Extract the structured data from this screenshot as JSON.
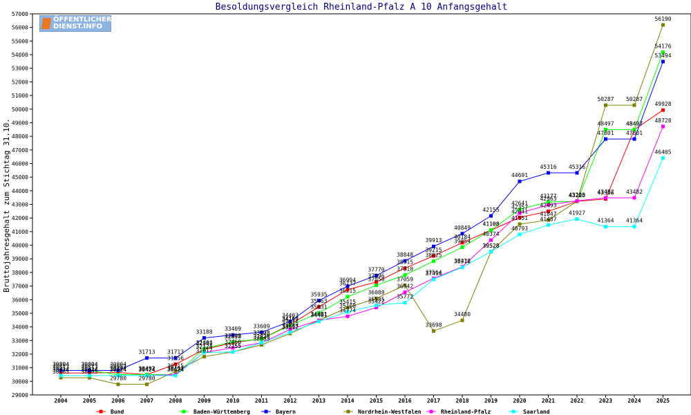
{
  "logo": {
    "line1": "ÖFFENTLICHER",
    "line2": "DIENST.INFO"
  },
  "chart_data": {
    "type": "line",
    "title": "Besoldungsvergleich Rheinland-Pfalz A 10 Anfangsgehalt",
    "xlabel": "",
    "ylabel": "Bruttojahresgehalt zum Stichtag 31.10.",
    "ylim": [
      29000,
      57000
    ],
    "ytick_step": 1000,
    "grid": false,
    "legend_position": "bottom",
    "categories": [
      "2004",
      "2005",
      "2006",
      "2007",
      "2008",
      "2009",
      "2010",
      "2011",
      "2012",
      "2013",
      "2014",
      "2015",
      "2016",
      "2017",
      "2018",
      "2019",
      "2020",
      "2021",
      "2022",
      "2023",
      "2024",
      "2025"
    ],
    "series": [
      {
        "name": "Bund",
        "color": "#ff0000",
        "values": [
          30613,
          30613,
          30652,
          30492,
          31256,
          32342,
          32838,
          33123,
          34166,
          35463,
          36737,
          37296,
          38315,
          39215,
          40184,
          41108,
          42041,
          42493,
          43225,
          43396,
          48497,
          49928
        ]
      },
      {
        "name": "Baden-Württemberg",
        "color": "#00ff00",
        "values": [
          30804,
          30804,
          30492,
          30492,
          30492,
          32404,
          32909,
          33108,
          34117,
          35031,
          36215,
          37050,
          37810,
          38825,
          39854,
          41108,
          42641,
          43177,
          43225,
          48497,
          48497,
          54176
        ]
      },
      {
        "name": "Bayern",
        "color": "#0000ff",
        "values": [
          30804,
          30804,
          30804,
          31713,
          31713,
          33188,
          33409,
          33609,
          34403,
          35935,
          36994,
          37770,
          38848,
          39913,
          40849,
          42155,
          44691,
          45316,
          45316,
          47801,
          47801,
          53494
        ]
      },
      {
        "name": "Nordrhein-Westfalen",
        "color": "#808000",
        "values": [
          30265,
          30265,
          29780,
          29780,
          30715,
          31817,
          32155,
          32683,
          33512,
          34481,
          35415,
          36088,
          37059,
          33698,
          34480,
          39528,
          41551,
          41847,
          43225,
          50287,
          50287,
          56190
        ]
      },
      {
        "name": "Rheinland-Pfalz",
        "color": "#ff00ff",
        "values": [
          30424,
          30424,
          30424,
          30424,
          30491,
          32124,
          32460,
          32828,
          33815,
          34481,
          34774,
          35422,
          36542,
          37564,
          38412,
          40374,
          42357,
          42963,
          43260,
          43482,
          43482,
          48728
        ]
      },
      {
        "name": "Saarland",
        "color": "#00ffff",
        "values": [
          30424,
          30424,
          30424,
          30424,
          30424,
          32124,
          32155,
          32828,
          33607,
          34401,
          35108,
          35585,
          35772,
          37494,
          38376,
          39528,
          40793,
          41487,
          41927,
          41364,
          41364,
          46405
        ]
      }
    ]
  }
}
